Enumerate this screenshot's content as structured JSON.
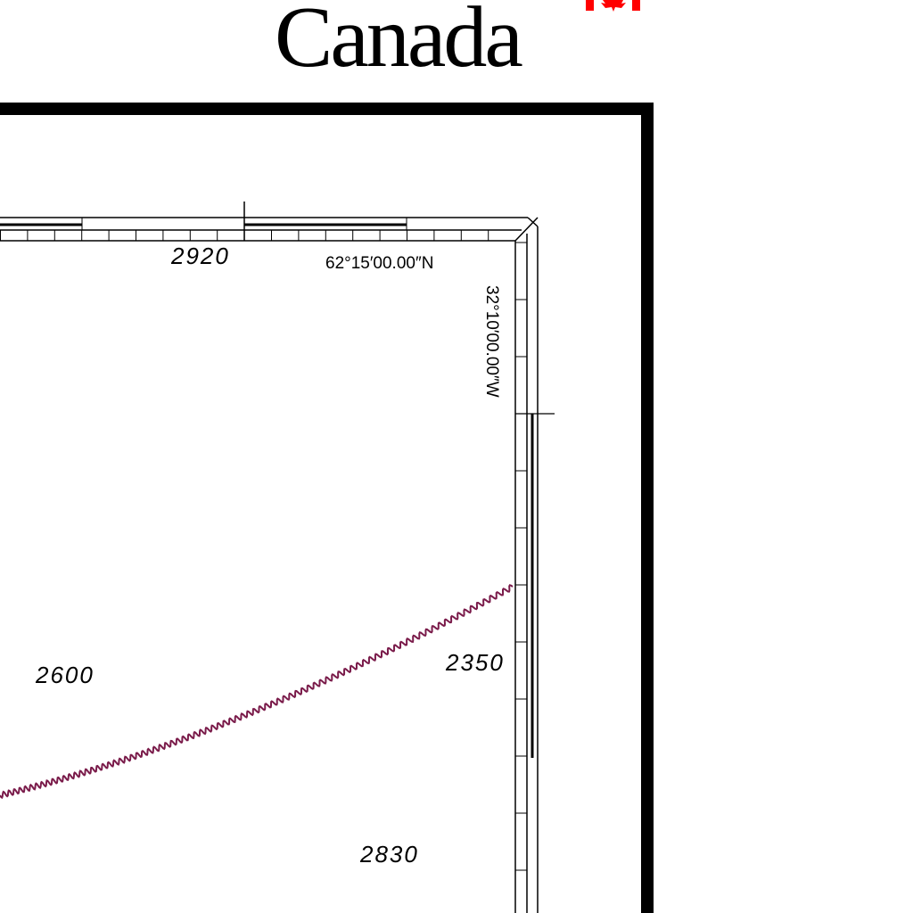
{
  "wordmark": {
    "text": "Canada",
    "flag_color": "#ff0000"
  },
  "graticule": {
    "latitude_label": "62°15′00.00″N",
    "longitude_label": "32°10′00.00″W"
  },
  "soundings": [
    {
      "value": "2920"
    },
    {
      "value": "2600"
    },
    {
      "value": "2350"
    },
    {
      "value": "2830"
    }
  ],
  "features": {
    "boundary_line_color": "#7a1b4a"
  }
}
